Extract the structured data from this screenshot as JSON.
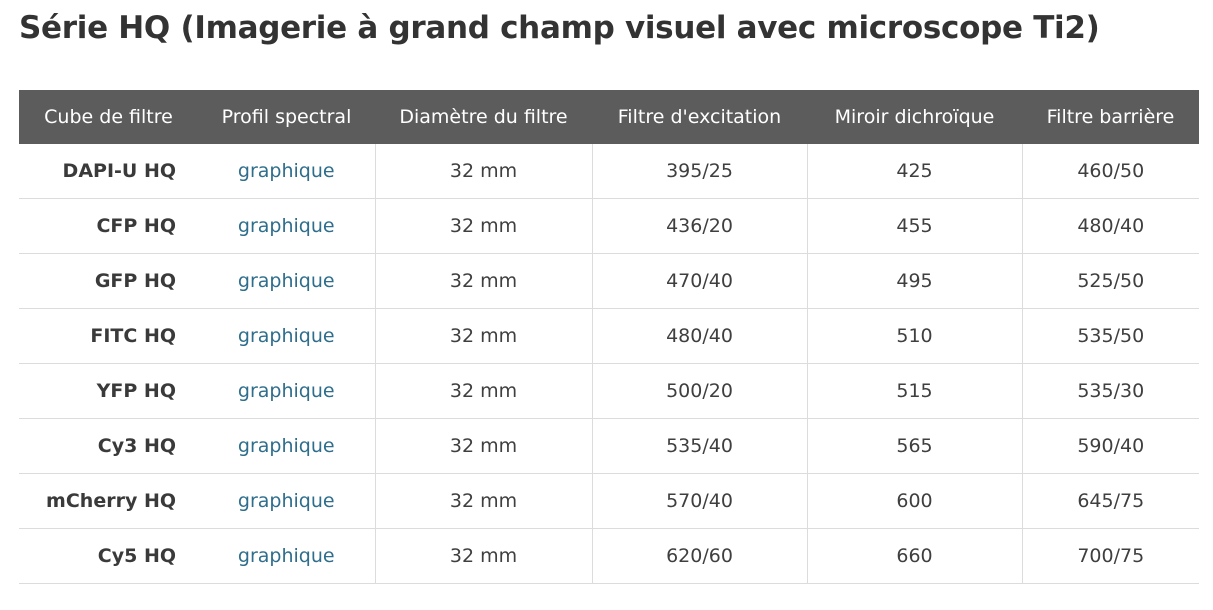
{
  "title": "Série HQ (Imagerie à grand champ visuel avec microscope Ti2)",
  "table": {
    "headers": [
      "Cube de filtre",
      "Profil spectral",
      "Diamètre du filtre",
      "Filtre d'excitation",
      "Miroir dichroïque",
      "Filtre barrière"
    ],
    "rows": [
      {
        "cube": "DAPI-U HQ",
        "profile": "graphique",
        "diameter": "32 mm",
        "excitation": "395/25",
        "dichroic": "425",
        "barrier": "460/50"
      },
      {
        "cube": "CFP HQ",
        "profile": "graphique",
        "diameter": "32 mm",
        "excitation": "436/20",
        "dichroic": "455",
        "barrier": "480/40"
      },
      {
        "cube": "GFP HQ",
        "profile": "graphique",
        "diameter": "32 mm",
        "excitation": "470/40",
        "dichroic": "495",
        "barrier": "525/50"
      },
      {
        "cube": "FITC HQ",
        "profile": "graphique",
        "diameter": "32 mm",
        "excitation": "480/40",
        "dichroic": "510",
        "barrier": "535/50"
      },
      {
        "cube": "YFP HQ",
        "profile": "graphique",
        "diameter": "32 mm",
        "excitation": "500/20",
        "dichroic": "515",
        "barrier": "535/30"
      },
      {
        "cube": "Cy3 HQ",
        "profile": "graphique",
        "diameter": "32 mm",
        "excitation": "535/40",
        "dichroic": "565",
        "barrier": "590/40"
      },
      {
        "cube": "mCherry HQ",
        "profile": "graphique",
        "diameter": "32 mm",
        "excitation": "570/40",
        "dichroic": "600",
        "barrier": "645/75"
      },
      {
        "cube": "Cy5 HQ",
        "profile": "graphique",
        "diameter": "32 mm",
        "excitation": "620/60",
        "dichroic": "660",
        "barrier": "700/75"
      }
    ]
  },
  "colors": {
    "header_bg": "#5c5c5c",
    "link": "#2e6e8c",
    "border": "#dcdcdc"
  }
}
